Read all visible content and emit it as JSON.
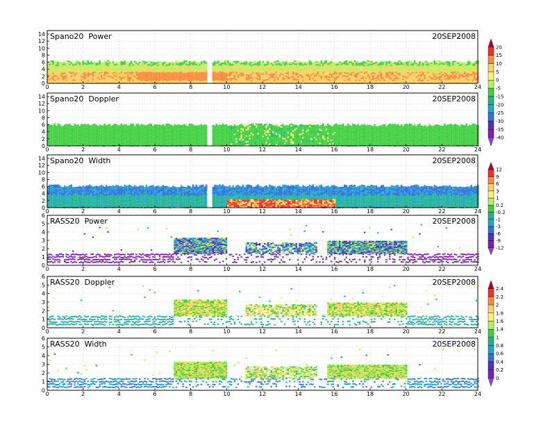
{
  "chart_data": [
    {
      "type": "heatmap",
      "title": "Spano20  Power",
      "date": "20SEP2008",
      "x_ticks": [
        "0",
        "2",
        "4",
        "6",
        "8",
        "10",
        "12",
        "14",
        "16",
        "18",
        "20",
        "22",
        "24"
      ],
      "y_ticks": [
        "0",
        "2",
        "4",
        "6",
        "8",
        "10",
        "12",
        "14"
      ],
      "xlim": [
        0,
        24
      ],
      "ylim": [
        0,
        15
      ],
      "grid": true,
      "data_top_km": 6.2,
      "data_gap_hours": [
        8.85,
        9.15
      ],
      "dominant_values": [
        -5,
        5,
        10
      ],
      "colorbar": "power"
    },
    {
      "type": "heatmap",
      "title": "Spano20  Doppler",
      "date": "20SEP2008",
      "x_ticks": [
        "0",
        "2",
        "4",
        "6",
        "8",
        "10",
        "12",
        "14",
        "16",
        "18",
        "20",
        "22",
        "24"
      ],
      "y_ticks": [
        "0",
        "2",
        "4",
        "6",
        "8",
        "10",
        "12",
        "14"
      ],
      "xlim": [
        0,
        24
      ],
      "ylim": [
        0,
        15
      ],
      "grid": true,
      "data_top_km": 6.0,
      "data_gap_hours": [
        8.85,
        9.15
      ],
      "dominant_values": [
        -15,
        -10
      ],
      "colorbar": "power"
    },
    {
      "type": "heatmap",
      "title": "Spano20  Width",
      "date": "20SEP2008",
      "x_ticks": [
        "0",
        "2",
        "4",
        "6",
        "8",
        "10",
        "12",
        "14",
        "16",
        "18",
        "20",
        "22",
        "24"
      ],
      "y_ticks": [
        "0",
        "2",
        "4",
        "6",
        "8",
        "10",
        "12",
        "14"
      ],
      "xlim": [
        0,
        24
      ],
      "ylim": [
        0,
        15
      ],
      "grid": true,
      "data_top_km": 6.2,
      "data_gap_hours": [
        8.85,
        9.15
      ],
      "dominant_values": [
        -3,
        -1,
        1,
        6,
        9
      ],
      "colorbar": "width"
    },
    {
      "type": "heatmap",
      "title": "RASS20  Power",
      "date": "20SEP2008",
      "x_ticks": [
        "0",
        "2",
        "4",
        "6",
        "8",
        "10",
        "12",
        "14",
        "16",
        "18",
        "20",
        "22",
        "24"
      ],
      "y_ticks": [
        "0",
        "1",
        "2",
        "3",
        "4",
        "5",
        "6"
      ],
      "xlim": [
        0,
        24
      ],
      "ylim": [
        0,
        6
      ],
      "grid": true,
      "dominant_values": [
        -12,
        -9,
        -3,
        0.2
      ],
      "colorbar": "width"
    },
    {
      "type": "heatmap",
      "title": "RASS20  Doppler",
      "date": "20SEP2008",
      "x_ticks": [
        "0",
        "2",
        "4",
        "6",
        "8",
        "10",
        "12",
        "14",
        "16",
        "18",
        "20",
        "22",
        "24"
      ],
      "y_ticks": [
        "0",
        "1",
        "2",
        "3",
        "4",
        "5",
        "6"
      ],
      "xlim": [
        0,
        24
      ],
      "ylim": [
        0,
        6
      ],
      "grid": true,
      "dominant_values": [
        0.6,
        1.2,
        1.6,
        1.8
      ],
      "colorbar": "doppler"
    },
    {
      "type": "heatmap",
      "title": "RASS20  Width",
      "date": "20SEP2008",
      "x_ticks": [
        "0",
        "2",
        "4",
        "6",
        "8",
        "10",
        "12",
        "14",
        "16",
        "18",
        "20",
        "22",
        "24"
      ],
      "y_ticks": [
        "0",
        "1",
        "2",
        "3",
        "4",
        "5",
        "6"
      ],
      "xlim": [
        0,
        24
      ],
      "ylim": [
        0,
        6
      ],
      "grid": true,
      "dominant_values": [
        0.4,
        1.0,
        1.4,
        1.8
      ],
      "colorbar": "doppler"
    }
  ],
  "colorbars": [
    {
      "id": "power",
      "labels": [
        "20",
        "15",
        "10",
        "5",
        "0",
        "-5",
        "-15",
        "-20",
        "-25",
        "-30",
        "-35",
        "-40"
      ],
      "colors": [
        "#b0003c",
        "#ff2a2a",
        "#ff8a3a",
        "#ffd060",
        "#fff070",
        "#b8f060",
        "#40d040",
        "#20b880",
        "#20a8c8",
        "#3070e0",
        "#5030c8",
        "#8020b0",
        "#9a40e0"
      ]
    },
    {
      "id": "width",
      "labels": [
        "12",
        "9",
        "6",
        "3",
        "1",
        "0.2",
        "-0.2",
        "-1",
        "-3",
        "-6",
        "-9",
        "-12"
      ],
      "colors": [
        "#b0003c",
        "#ff2a2a",
        "#ff8a3a",
        "#ffd060",
        "#fff070",
        "#b8f060",
        "#40d040",
        "#20b880",
        "#20a8c8",
        "#3070e0",
        "#5030c8",
        "#8020b0",
        "#9a40e0"
      ]
    },
    {
      "id": "doppler",
      "labels": [
        "2.4",
        "2.2",
        "2",
        "1.8",
        "1.6",
        "1.4",
        "1",
        "0.8",
        "0.6",
        "0.4",
        "0.2",
        "0"
      ],
      "colors": [
        "#b0003c",
        "#ff2a2a",
        "#ff8a3a",
        "#ffd060",
        "#fff070",
        "#b8f060",
        "#40d040",
        "#20b880",
        "#20a8c8",
        "#3070e0",
        "#5030c8",
        "#8020b0",
        "#9a40e0"
      ]
    }
  ]
}
